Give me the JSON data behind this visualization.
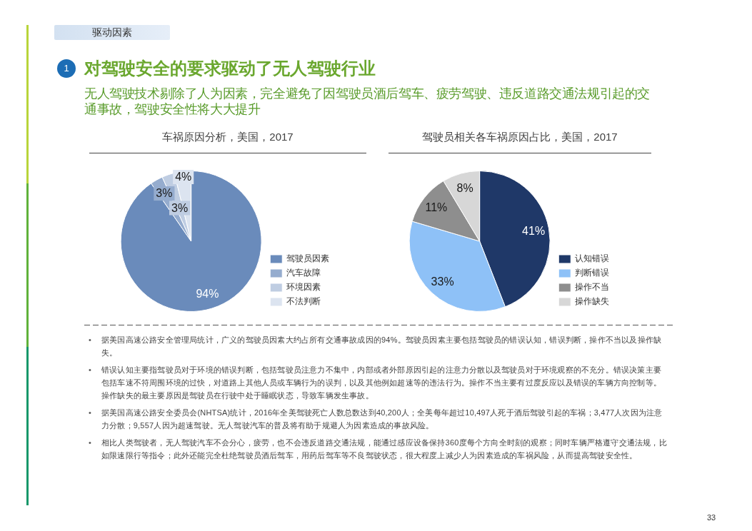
{
  "chart_data": [
    {
      "type": "pie",
      "title": "车祸原因分析，美国，2017",
      "categories": [
        "驾驶员因素",
        "汽车故障",
        "环境因素",
        "不法判断"
      ],
      "values": [
        94,
        3,
        3,
        4
      ],
      "colors": [
        "#6a8bbb",
        "#95acce",
        "#bfcde2",
        "#dce4f0"
      ],
      "value_labels": [
        "94%",
        "3%",
        "3%",
        "4%"
      ],
      "legend": "bottom right",
      "annotations": [
        "驱动因素",
        "1",
        "对驾驶安全的要求驱动了无人驾驶行业",
        "无人驾驶技术剔除了人为因素，完全避免了因驾驶员酒后驾车、疲劳驾驶、违反道路交通法规引起的交通事故，驾驶安全性将大大提升"
      ]
    },
    {
      "type": "pie",
      "title": "驾驶员相关各车祸原因占比，美国，2017",
      "categories": [
        "认知错误",
        "判断错误",
        "操作不当",
        "操作缺失"
      ],
      "values": [
        41,
        33,
        11,
        8
      ],
      "colors": [
        "#1f3868",
        "#8ec1f7",
        "#8e8e8e",
        "#d7d7d7"
      ],
      "value_labels": [
        "41%",
        "33%",
        "11%",
        "8%"
      ],
      "legend": "bottom right",
      "annotations": [
        "• 据美国高速公路安全管理局统计，广义的驾驶员因素大约占所有交通事故成因的94%。驾驶员因素主要包括驾驶员的错误认知，错误判断，操作不当以及操作缺失。",
        "• 错误认知主要指驾驶员对于环境的错误判断，包括驾驶员注意力不集中，内部或者外部原因引起的注意力分散以及驾驶员对于环境观察的不充分。错误决策主要包括车速不符周围环境的过快，对道路上其他人员或车辆行为的误判，以及其他例如超速等的违法行为。操作不当主要有过度反应以及错误的车辆方向控制等。操作缺失的最主要原因是驾驶员在行驶中处于睡眠状态，导致车辆发生事故。",
        "• 据美国高速公路安全委员会(NHTSA)统计，2016年全美驾驶死亡人数总数达到40,200人；全美每年超过10,497人死于酒后驾驶引起的车祸；3,477人次因为注意力分散；9,557人因为超速驾驶。无人驾驶汽车的普及将有助于规避人为因素造成的事故风险。",
        "• 相比人类驾驶者，无人驾驶汽车不会分心，疲劳，也不会违反道路交通法规，能通过感应设备保持360度每个方向全时刻的观察；同时车辆严格遵守交通法规，比如限速限行等指令；此外还能完全杜绝驾驶员酒后驾车，用药后驾车等不良驾驶状态，很大程度上减少人为因素造成的车祸风险，从而提高驾驶安全性。",
        "33"
      ]
    }
  ]
}
